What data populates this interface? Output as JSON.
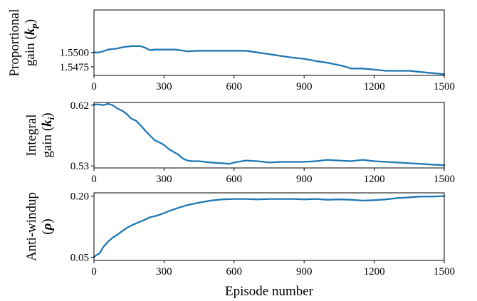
{
  "chart_data": [
    {
      "type": "line",
      "ylabel_lines": [
        "Proportional",
        "gain ("
      ],
      "ylabel_symbol": "k",
      "ylabel_sub": "p",
      "ylabel_close": ")",
      "xlim": [
        0,
        1500
      ],
      "ylim": [
        1.546,
        1.5574
      ],
      "xticks": [
        0,
        300,
        600,
        900,
        1200,
        1500
      ],
      "xtick_labels": [
        "0",
        "300",
        "600",
        "900",
        "1200",
        "1500"
      ],
      "yticks": [
        1.5475,
        1.55
      ],
      "ytick_labels": [
        "1.5475",
        "1.5500"
      ],
      "series": [
        {
          "color": "#1f77b4",
          "x": [
            0,
            20,
            40,
            60,
            80,
            100,
            120,
            140,
            160,
            180,
            200,
            220,
            240,
            260,
            280,
            300,
            350,
            400,
            450,
            500,
            550,
            600,
            650,
            700,
            750,
            800,
            850,
            900,
            950,
            1000,
            1050,
            1080,
            1100,
            1150,
            1200,
            1250,
            1300,
            1350,
            1400,
            1450,
            1480,
            1500
          ],
          "y": [
            1.55,
            1.55,
            1.5502,
            1.5505,
            1.5506,
            1.5507,
            1.5509,
            1.551,
            1.5511,
            1.5511,
            1.5511,
            1.5508,
            1.5504,
            1.5505,
            1.5505,
            1.5505,
            1.5505,
            1.5502,
            1.5503,
            1.5503,
            1.5503,
            1.5503,
            1.5503,
            1.55,
            1.5497,
            1.5494,
            1.5491,
            1.5489,
            1.5485,
            1.5482,
            1.5478,
            1.5475,
            1.5472,
            1.5472,
            1.547,
            1.5468,
            1.5468,
            1.5468,
            1.5466,
            1.5464,
            1.5463,
            1.5462
          ]
        }
      ]
    },
    {
      "type": "line",
      "ylabel_lines": [
        "Integral",
        "gain ("
      ],
      "ylabel_symbol": "k",
      "ylabel_sub": "i",
      "ylabel_close": ")",
      "xlim": [
        0,
        1500
      ],
      "ylim": [
        0.527,
        0.624
      ],
      "xticks": [
        0,
        300,
        600,
        900,
        1200,
        1500
      ],
      "xtick_labels": [
        "0",
        "300",
        "600",
        "900",
        "1200",
        "1500"
      ],
      "yticks": [
        0.53,
        0.62
      ],
      "ytick_labels": [
        "0.53",
        "0.62"
      ],
      "series": [
        {
          "color": "#1f77b4",
          "x": [
            0,
            20,
            40,
            60,
            80,
            100,
            120,
            140,
            160,
            180,
            200,
            220,
            240,
            260,
            280,
            300,
            320,
            340,
            360,
            380,
            400,
            420,
            450,
            500,
            550,
            580,
            600,
            650,
            700,
            750,
            800,
            850,
            900,
            950,
            1000,
            1050,
            1100,
            1150,
            1200,
            1250,
            1300,
            1350,
            1400,
            1450,
            1500
          ],
          "y": [
            0.621,
            0.621,
            0.62,
            0.622,
            0.62,
            0.615,
            0.612,
            0.607,
            0.6,
            0.597,
            0.59,
            0.582,
            0.575,
            0.568,
            0.565,
            0.561,
            0.555,
            0.551,
            0.547,
            0.541,
            0.538,
            0.537,
            0.537,
            0.535,
            0.534,
            0.533,
            0.535,
            0.538,
            0.537,
            0.535,
            0.536,
            0.536,
            0.536,
            0.537,
            0.539,
            0.538,
            0.537,
            0.539,
            0.537,
            0.536,
            0.535,
            0.534,
            0.533,
            0.532,
            0.531
          ]
        }
      ]
    },
    {
      "type": "line",
      "ylabel_lines": [
        "Anti-windup",
        "("
      ],
      "ylabel_symbol": "ρ",
      "ylabel_sub": "",
      "ylabel_close": ")",
      "xlabel": "Episode number",
      "xlim": [
        0,
        1500
      ],
      "ylim": [
        0.042,
        0.208
      ],
      "xticks": [
        0,
        300,
        600,
        900,
        1200,
        1500
      ],
      "xtick_labels": [
        "0",
        "300",
        "600",
        "900",
        "1200",
        "1500"
      ],
      "yticks": [
        0.05,
        0.2
      ],
      "ytick_labels": [
        "0.05",
        "0.20"
      ],
      "series": [
        {
          "color": "#1f77b4",
          "x": [
            0,
            10,
            25,
            40,
            60,
            80,
            100,
            120,
            150,
            180,
            210,
            240,
            270,
            300,
            330,
            360,
            400,
            450,
            500,
            550,
            600,
            650,
            700,
            750,
            800,
            850,
            900,
            950,
            1000,
            1050,
            1100,
            1150,
            1200,
            1250,
            1300,
            1350,
            1400,
            1450,
            1500
          ],
          "y": [
            0.05,
            0.055,
            0.06,
            0.075,
            0.088,
            0.098,
            0.105,
            0.114,
            0.125,
            0.133,
            0.14,
            0.148,
            0.152,
            0.158,
            0.165,
            0.171,
            0.178,
            0.184,
            0.189,
            0.192,
            0.193,
            0.193,
            0.192,
            0.193,
            0.193,
            0.193,
            0.192,
            0.193,
            0.191,
            0.192,
            0.191,
            0.189,
            0.19,
            0.192,
            0.195,
            0.197,
            0.199,
            0.199,
            0.2
          ]
        }
      ]
    }
  ]
}
